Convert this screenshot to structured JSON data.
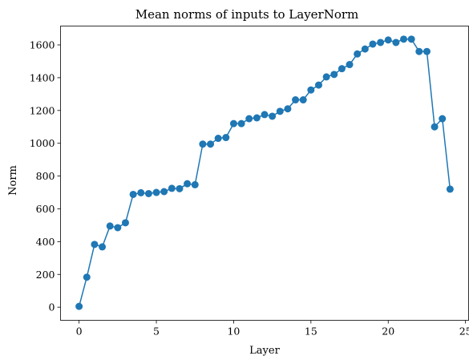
{
  "chart_data": {
    "type": "line",
    "title": "Mean norms of inputs to LayerNorm",
    "xlabel": "Layer",
    "ylabel": "Norm",
    "xlim": [
      -1.2,
      25.2
    ],
    "ylim": [
      -80,
      1715
    ],
    "xticks": [
      0,
      5,
      10,
      15,
      20,
      25
    ],
    "yticks": [
      0,
      200,
      400,
      600,
      800,
      1000,
      1200,
      1400,
      1600
    ],
    "grid": false,
    "markers": true,
    "color": "#1f77b4",
    "series": [
      {
        "x": [
          0,
          0.5,
          1,
          1.5,
          2,
          2.5,
          3,
          3.5,
          4,
          4.5,
          5,
          5.5,
          6,
          6.5,
          7,
          7.5,
          8,
          8.5,
          9,
          9.5,
          10,
          10.5,
          11,
          11.5,
          12,
          12.5,
          13,
          13.5,
          14,
          14.5,
          15,
          15.5,
          16,
          16.5,
          17,
          17.5,
          18,
          18.5,
          19,
          19.5,
          20,
          20.5,
          21,
          21.5,
          22,
          22.5,
          23,
          23.5,
          24
        ],
        "values": [
          5,
          183,
          383,
          368,
          495,
          485,
          515,
          688,
          698,
          693,
          700,
          705,
          725,
          723,
          753,
          747,
          995,
          995,
          1030,
          1035,
          1120,
          1120,
          1150,
          1155,
          1175,
          1165,
          1195,
          1210,
          1265,
          1265,
          1325,
          1355,
          1405,
          1420,
          1455,
          1480,
          1545,
          1575,
          1605,
          1615,
          1630,
          1615,
          1635,
          1635,
          1560,
          1560,
          1100,
          1150,
          720
        ]
      }
    ]
  }
}
